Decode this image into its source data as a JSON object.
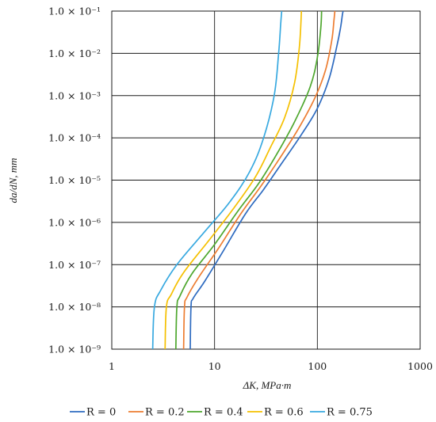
{
  "chart_data": {
    "type": "line",
    "title": "",
    "xlabel": "ΔK, MPa·m",
    "ylabel": "da/dN, mm",
    "x_scale": "log",
    "y_scale": "log",
    "xlim": [
      1,
      1000
    ],
    "ylim": [
      1e-09,
      0.1
    ],
    "x_ticks": [
      1,
      10,
      100,
      1000
    ],
    "x_tick_labels": [
      "1",
      "10",
      "100",
      "1000"
    ],
    "y_ticks": [
      1e-09,
      1e-08,
      1e-07,
      1e-06,
      1e-05,
      0.0001,
      0.001,
      0.01,
      0.1
    ],
    "y_tick_labels": [
      "1.0 × 10⁻⁹",
      "1.0 × 10⁻⁸",
      "1.0 × 10⁻⁷",
      "1.0 × 10⁻⁶",
      "1.0 × 10⁻⁵",
      "1.0 × 10⁻⁴",
      "1.0 × 10⁻³",
      "1.0 × 10⁻²",
      "1.0 × 10⁻¹"
    ],
    "grid": true,
    "legend_position": "bottom",
    "series": [
      {
        "name": "R = 0",
        "color": "#2E6BC0",
        "x": [
          5.8,
          5.9,
          6.2,
          8.0,
          12.0,
          20.0,
          30.0,
          45.0,
          70.0,
          100.0,
          130.0,
          155.0,
          168.0,
          175.0,
          178.0
        ],
        "y": [
          1e-09,
          1e-08,
          1.6e-08,
          4e-08,
          2e-07,
          1.6e-06,
          6e-06,
          2.5e-05,
          0.00012,
          0.0005,
          0.0025,
          0.015,
          0.04,
          0.08,
          0.1
        ]
      },
      {
        "name": "R = 0.2",
        "color": "#ED7D31",
        "x": [
          5.0,
          5.1,
          5.4,
          7.0,
          11.0,
          18.0,
          28.0,
          42.0,
          65.0,
          95.0,
          120.0,
          138.0,
          145.0,
          148.0
        ],
        "y": [
          1e-09,
          1e-08,
          1.7e-08,
          5e-08,
          2.5e-07,
          1.6e-06,
          7e-06,
          3e-05,
          0.00016,
          0.0009,
          0.004,
          0.02,
          0.06,
          0.1
        ]
      },
      {
        "name": "R = 0.4",
        "color": "#4EA72E",
        "x": [
          4.2,
          4.3,
          4.6,
          6.0,
          10.0,
          17.0,
          27.0,
          40.0,
          60.0,
          85.0,
          100.0,
          108.0,
          110.0
        ],
        "y": [
          1e-09,
          1e-08,
          1.8e-08,
          6e-08,
          3e-07,
          1.9e-06,
          8.5e-06,
          4e-05,
          0.00024,
          0.0016,
          0.008,
          0.04,
          0.1
        ]
      },
      {
        "name": "R = 0.6",
        "color": "#F5C000",
        "x": [
          3.3,
          3.4,
          3.8,
          5.0,
          9.0,
          15.0,
          25.0,
          35.0,
          48.0,
          60.0,
          67.0,
          70.0
        ],
        "y": [
          1e-09,
          1e-08,
          2e-08,
          6.5e-08,
          4e-07,
          2e-06,
          1.2e-05,
          6e-05,
          0.0003,
          0.002,
          0.015,
          0.1
        ]
      },
      {
        "name": "R = 0.75",
        "color": "#38A9E0",
        "x": [
          2.5,
          2.6,
          3.0,
          4.3,
          8.0,
          14.0,
          22.0,
          30.0,
          38.0,
          42.0,
          44.0,
          45.0
        ],
        "y": [
          1e-09,
          1e-08,
          2.5e-08,
          1e-07,
          6e-07,
          3e-06,
          1.6e-05,
          0.0001,
          0.001,
          0.01,
          0.05,
          0.1
        ]
      }
    ]
  }
}
